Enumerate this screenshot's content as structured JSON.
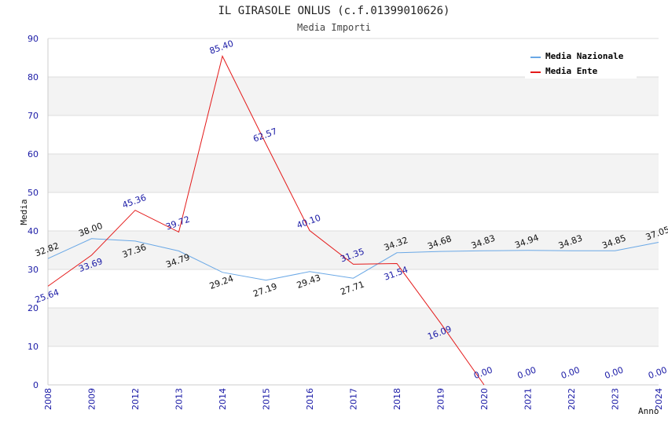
{
  "chart_data": {
    "type": "line",
    "title": "IL GIRASOLE ONLUS (c.f.01399010626)",
    "subtitle": "Media Importi",
    "xlabel": "Anno",
    "ylabel": "Media",
    "categories": [
      "2008",
      "2009",
      "2012",
      "2013",
      "2014",
      "2015",
      "2016",
      "2017",
      "2018",
      "2019",
      "2020",
      "2021",
      "2022",
      "2023",
      "2024"
    ],
    "ylim": [
      0,
      90
    ],
    "yticks": [
      0,
      10,
      20,
      30,
      40,
      50,
      60,
      70,
      80,
      90
    ],
    "legend_position": "top-right",
    "series": [
      {
        "name": "Media Nazionale",
        "color": "#6aa8e6",
        "values": [
          32.82,
          38.0,
          37.36,
          34.79,
          29.24,
          27.19,
          29.43,
          27.71,
          34.32,
          34.68,
          34.83,
          34.94,
          34.83,
          34.85,
          37.05
        ],
        "labels": [
          "32.82",
          "38.00",
          "37.36",
          "34.79",
          "29.24",
          "27.19",
          "29.43",
          "27.71",
          "34.32",
          "34.68",
          "34.83",
          "34.94",
          "34.83",
          "34.85",
          "37.05"
        ]
      },
      {
        "name": "Media Ente",
        "color": "#e41a1a",
        "values": [
          25.64,
          33.69,
          45.36,
          39.72,
          85.4,
          62.57,
          40.1,
          31.35,
          31.54,
          16.09,
          0.0,
          0.0,
          0.0,
          0.0,
          0.0
        ],
        "labels": [
          "25.64",
          "33.69",
          "45.36",
          "39.72",
          "85.40",
          "62.57",
          "40.10",
          "31.35",
          "31.54",
          "16.09",
          "0.00",
          "0.00",
          "0.00",
          "0.00",
          "0.00"
        ],
        "line_points": 11
      }
    ]
  }
}
